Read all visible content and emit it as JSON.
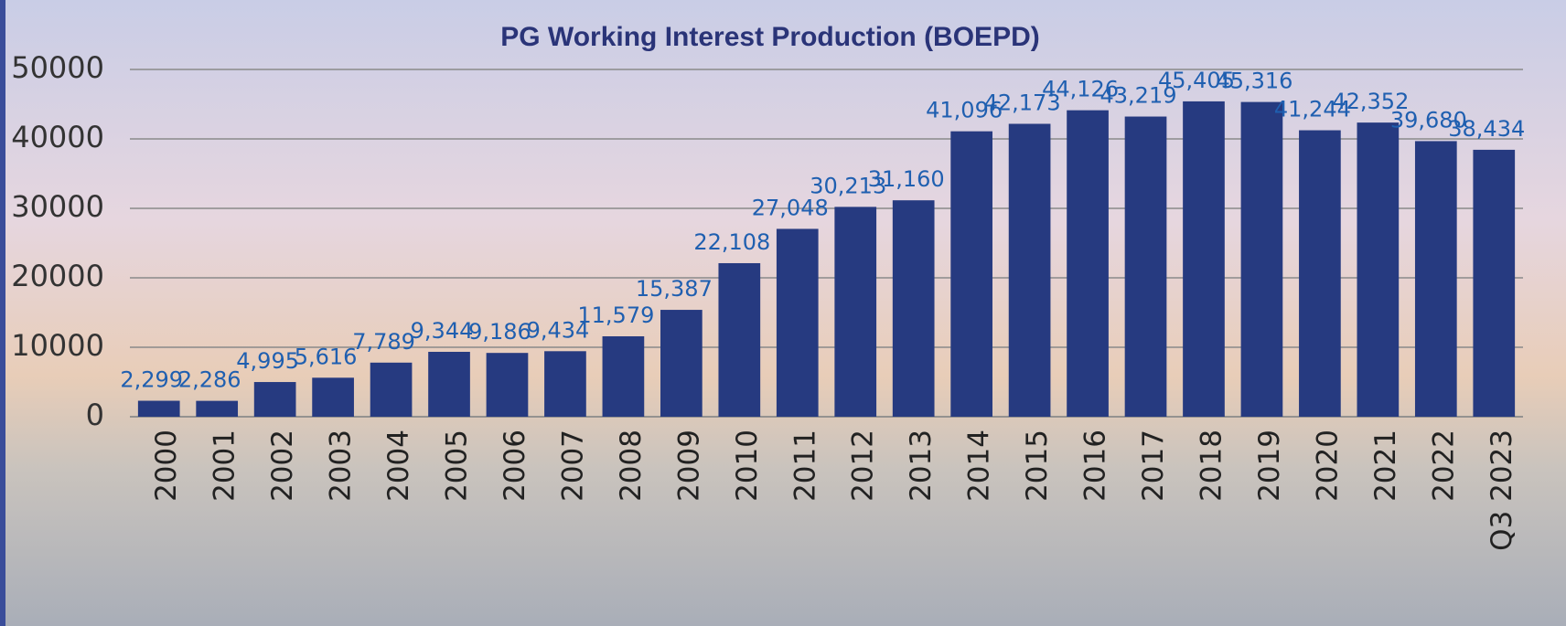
{
  "chart_data": {
    "type": "bar",
    "title": "PG Working Interest Production (BOEPD)",
    "categories": [
      "2000",
      "2001",
      "2002",
      "2003",
      "2004",
      "2005",
      "2006",
      "2007",
      "2008",
      "2009",
      "2010",
      "2011",
      "2012",
      "2013",
      "2014",
      "2015",
      "2016",
      "2017",
      "2018",
      "2019",
      "2020",
      "2021",
      "2022",
      "Q3 2023"
    ],
    "values": [
      2299,
      2286,
      4995,
      5616,
      7789,
      9344,
      9186,
      9434,
      11579,
      15387,
      22108,
      27048,
      30213,
      31160,
      41096,
      42173,
      44126,
      43219,
      45405,
      45316,
      41244,
      42352,
      39680,
      38434
    ],
    "value_labels": [
      "2,299",
      "2,286",
      "4,995",
      "5,616",
      "7,789",
      "9,344",
      "9,186",
      "9,434",
      "11,579",
      "15,387",
      "22,108",
      "27,048",
      "30,213",
      "31,160",
      "41,096",
      "42,173",
      "44,126",
      "43,219",
      "45,405",
      "45,316",
      "41,244",
      "42,352",
      "39,680",
      "38,434"
    ],
    "color": "#263a80",
    "ylim": [
      0,
      50000
    ],
    "yticks": [
      0,
      10000,
      20000,
      30000,
      40000,
      50000
    ],
    "grid": true
  }
}
